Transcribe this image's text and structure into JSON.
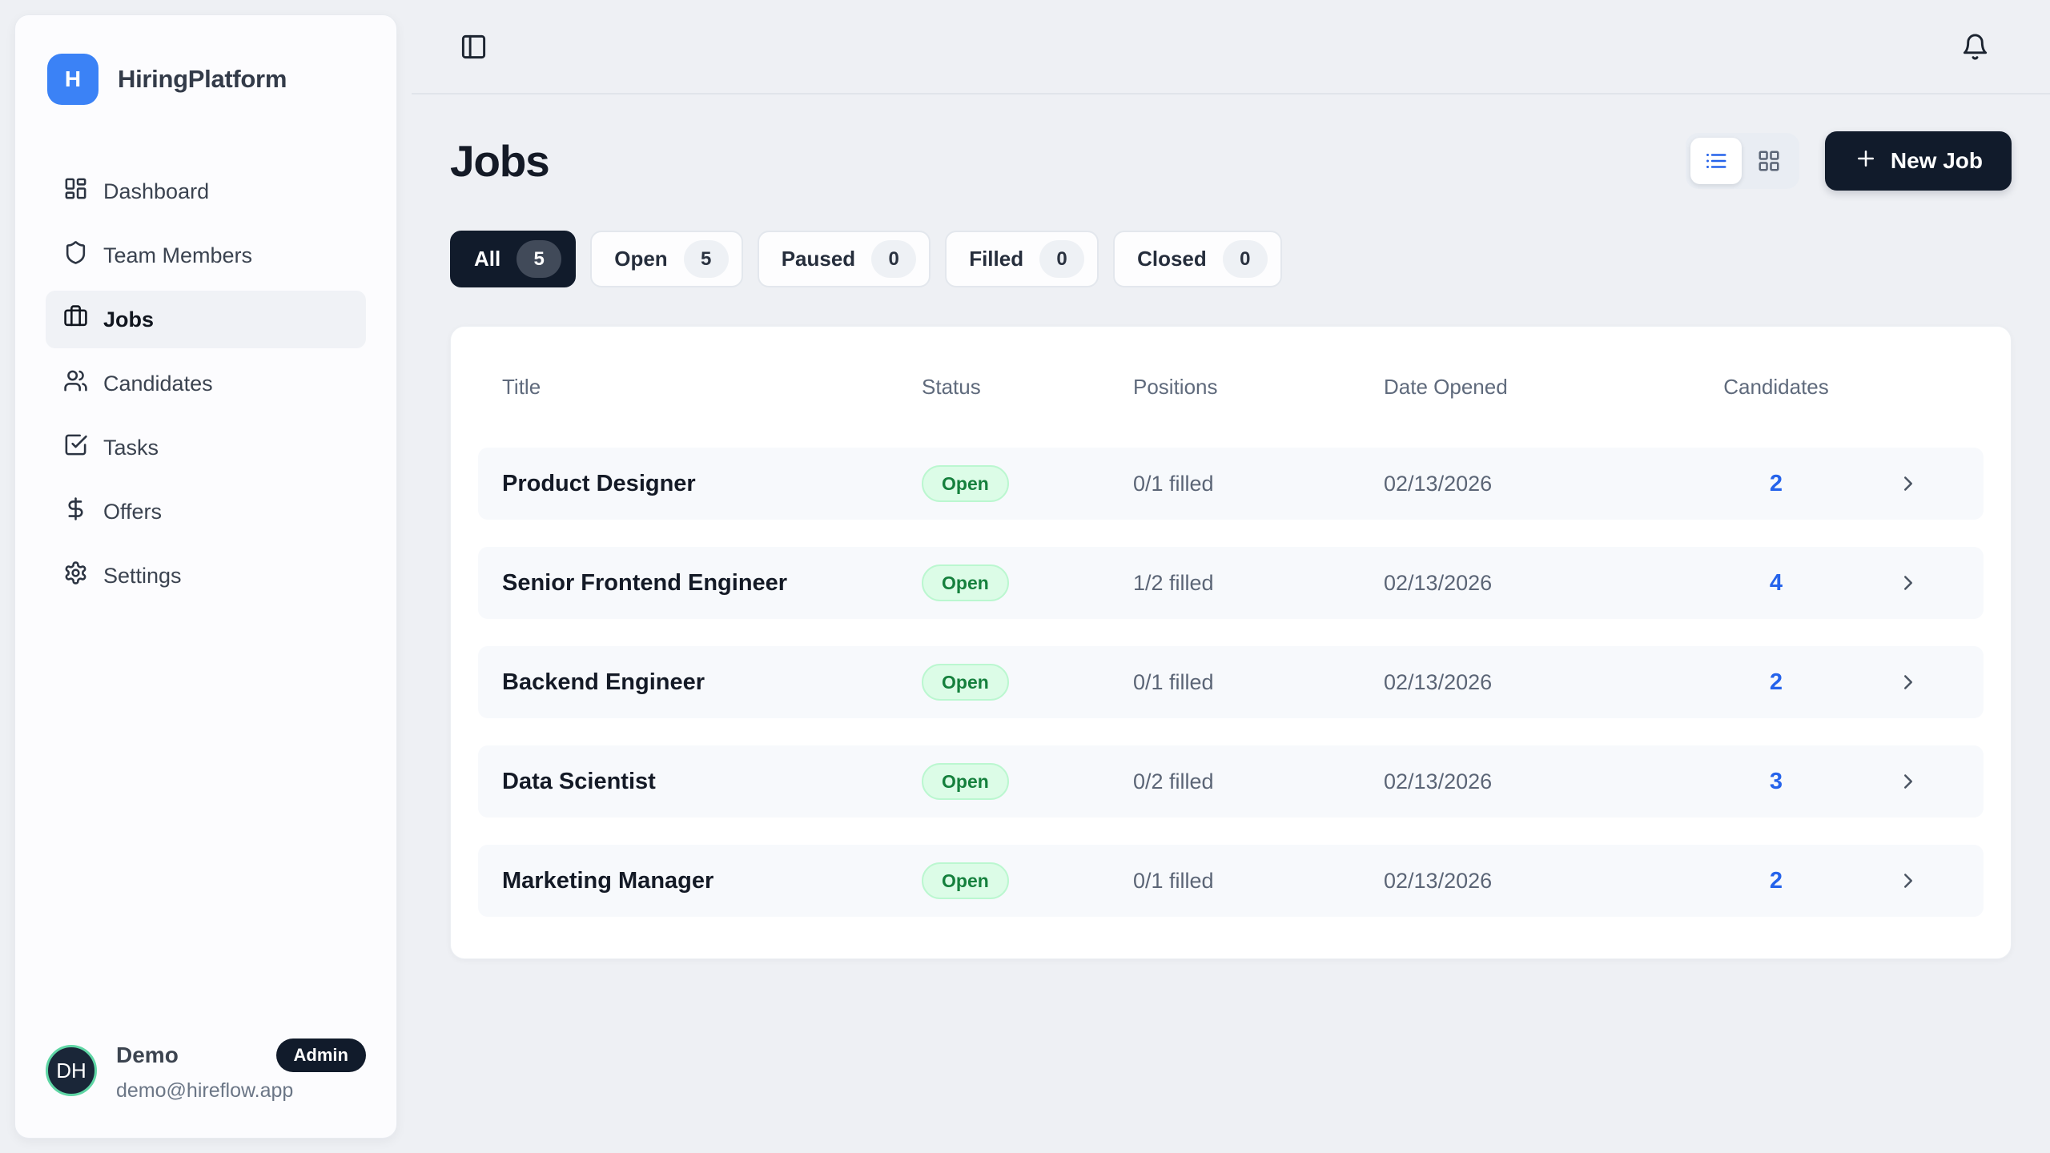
{
  "brand": {
    "name": "HiringPlatform",
    "logo_letter": "H",
    "logo_icon": "brand-mark"
  },
  "topbar": {
    "sidebar_toggle_icon": "panel-left-icon",
    "notifications_icon": "bell-icon"
  },
  "sidebar": {
    "items": [
      {
        "label": "Dashboard",
        "icon": "dashboard-icon",
        "active": false
      },
      {
        "label": "Team Members",
        "icon": "shield-icon",
        "active": false
      },
      {
        "label": "Jobs",
        "icon": "briefcase-icon",
        "active": true
      },
      {
        "label": "Candidates",
        "icon": "users-icon",
        "active": false
      },
      {
        "label": "Tasks",
        "icon": "task-check-icon",
        "active": false
      },
      {
        "label": "Offers",
        "icon": "dollar-icon",
        "active": false
      },
      {
        "label": "Settings",
        "icon": "gear-icon",
        "active": false
      }
    ],
    "user": {
      "initials": "DH",
      "name": "Demo",
      "role_badge": "Admin",
      "email": "demo@hireflow.app"
    }
  },
  "header": {
    "title": "Jobs",
    "view_modes": [
      {
        "name": "list",
        "icon": "list-view-icon",
        "active": true
      },
      {
        "name": "grid",
        "icon": "grid-view-icon",
        "active": false
      }
    ],
    "new_job_label": "New Job",
    "new_job_icon": "plus-icon"
  },
  "filters": [
    {
      "label": "All",
      "count": "5",
      "active": true
    },
    {
      "label": "Open",
      "count": "5",
      "active": false
    },
    {
      "label": "Paused",
      "count": "0",
      "active": false
    },
    {
      "label": "Filled",
      "count": "0",
      "active": false
    },
    {
      "label": "Closed",
      "count": "0",
      "active": false
    }
  ],
  "table": {
    "columns": [
      "Title",
      "Status",
      "Positions",
      "Date Opened",
      "Candidates"
    ],
    "rows": [
      {
        "title": "Product Designer",
        "status": "Open",
        "positions": "0/1 filled",
        "date_opened": "02/13/2026",
        "candidates": "2"
      },
      {
        "title": "Senior Frontend Engineer",
        "status": "Open",
        "positions": "1/2 filled",
        "date_opened": "02/13/2026",
        "candidates": "4"
      },
      {
        "title": "Backend Engineer",
        "status": "Open",
        "positions": "0/1 filled",
        "date_opened": "02/13/2026",
        "candidates": "2"
      },
      {
        "title": "Data Scientist",
        "status": "Open",
        "positions": "0/2 filled",
        "date_opened": "02/13/2026",
        "candidates": "3"
      },
      {
        "title": "Marketing Manager",
        "status": "Open",
        "positions": "0/1 filled",
        "date_opened": "02/13/2026",
        "candidates": "2"
      }
    ]
  },
  "colors": {
    "page_bg": "#eef0f4",
    "brand_blue": "#3b82f6",
    "navy": "#111b2b",
    "accent_blue": "#2563eb",
    "open_bg": "#dcfce7",
    "open_border": "#bbf7d0",
    "open_text": "#15803d",
    "avatar_ring": "#5fd6a5"
  }
}
